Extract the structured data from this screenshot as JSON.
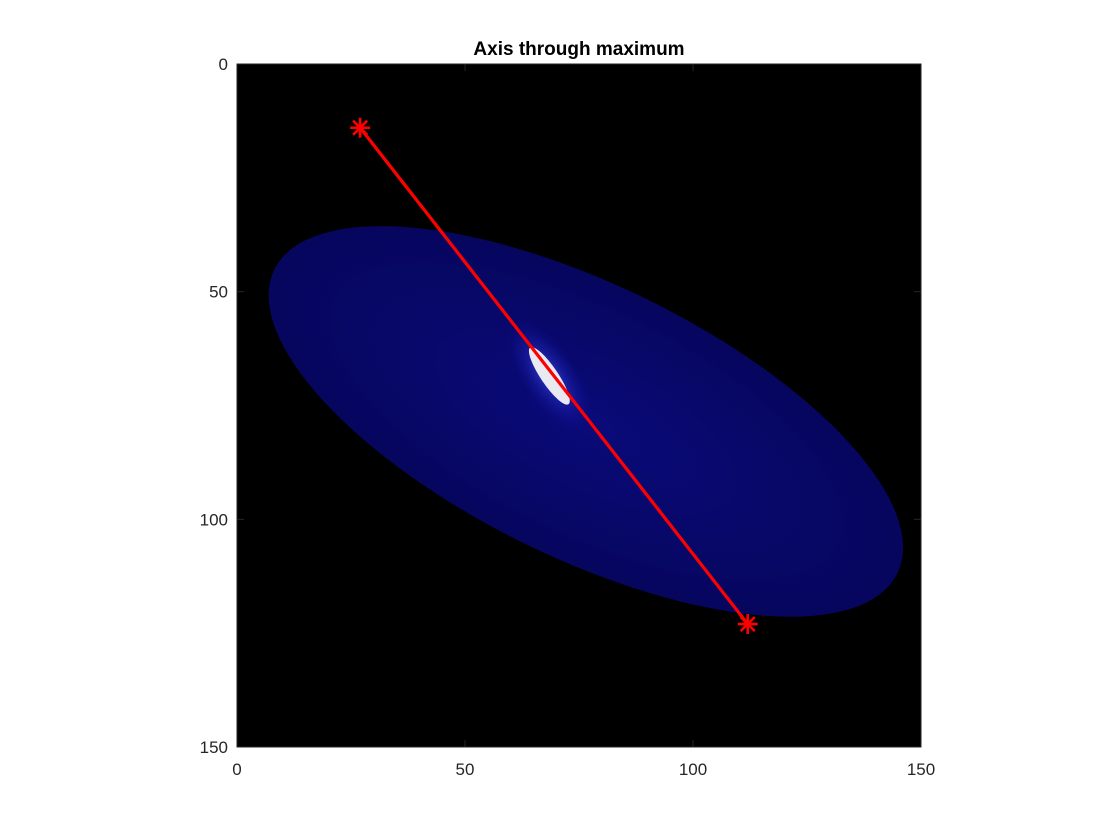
{
  "chart_data": {
    "type": "heatmap",
    "title": "Axis through maximum",
    "xlabel": "",
    "ylabel": "",
    "xlim": [
      0,
      150
    ],
    "ylim": [
      0,
      150
    ],
    "y_direction": "reverse",
    "grid": false,
    "legend": "none",
    "x_ticks": [
      0,
      50,
      100,
      150
    ],
    "y_ticks": [
      0,
      50,
      100,
      150
    ],
    "image": {
      "background": "#000000",
      "colormap": "black-blue-white",
      "blob": {
        "shape": "ellipse",
        "center": [
          76.5,
          78.5
        ],
        "semi_axes": [
          76,
          30
        ],
        "rotation_deg": 26,
        "color": "#080870"
      },
      "peak": {
        "center": [
          68.5,
          68.5
        ],
        "semi_axes": [
          7.5,
          1.9
        ],
        "rotation_deg": 56,
        "color": "#e9e9f2"
      }
    },
    "series": [
      {
        "type": "line",
        "color": "#ff0000",
        "marker": "asterisk",
        "x": [
          27,
          112
        ],
        "y": [
          14,
          123
        ]
      }
    ]
  }
}
